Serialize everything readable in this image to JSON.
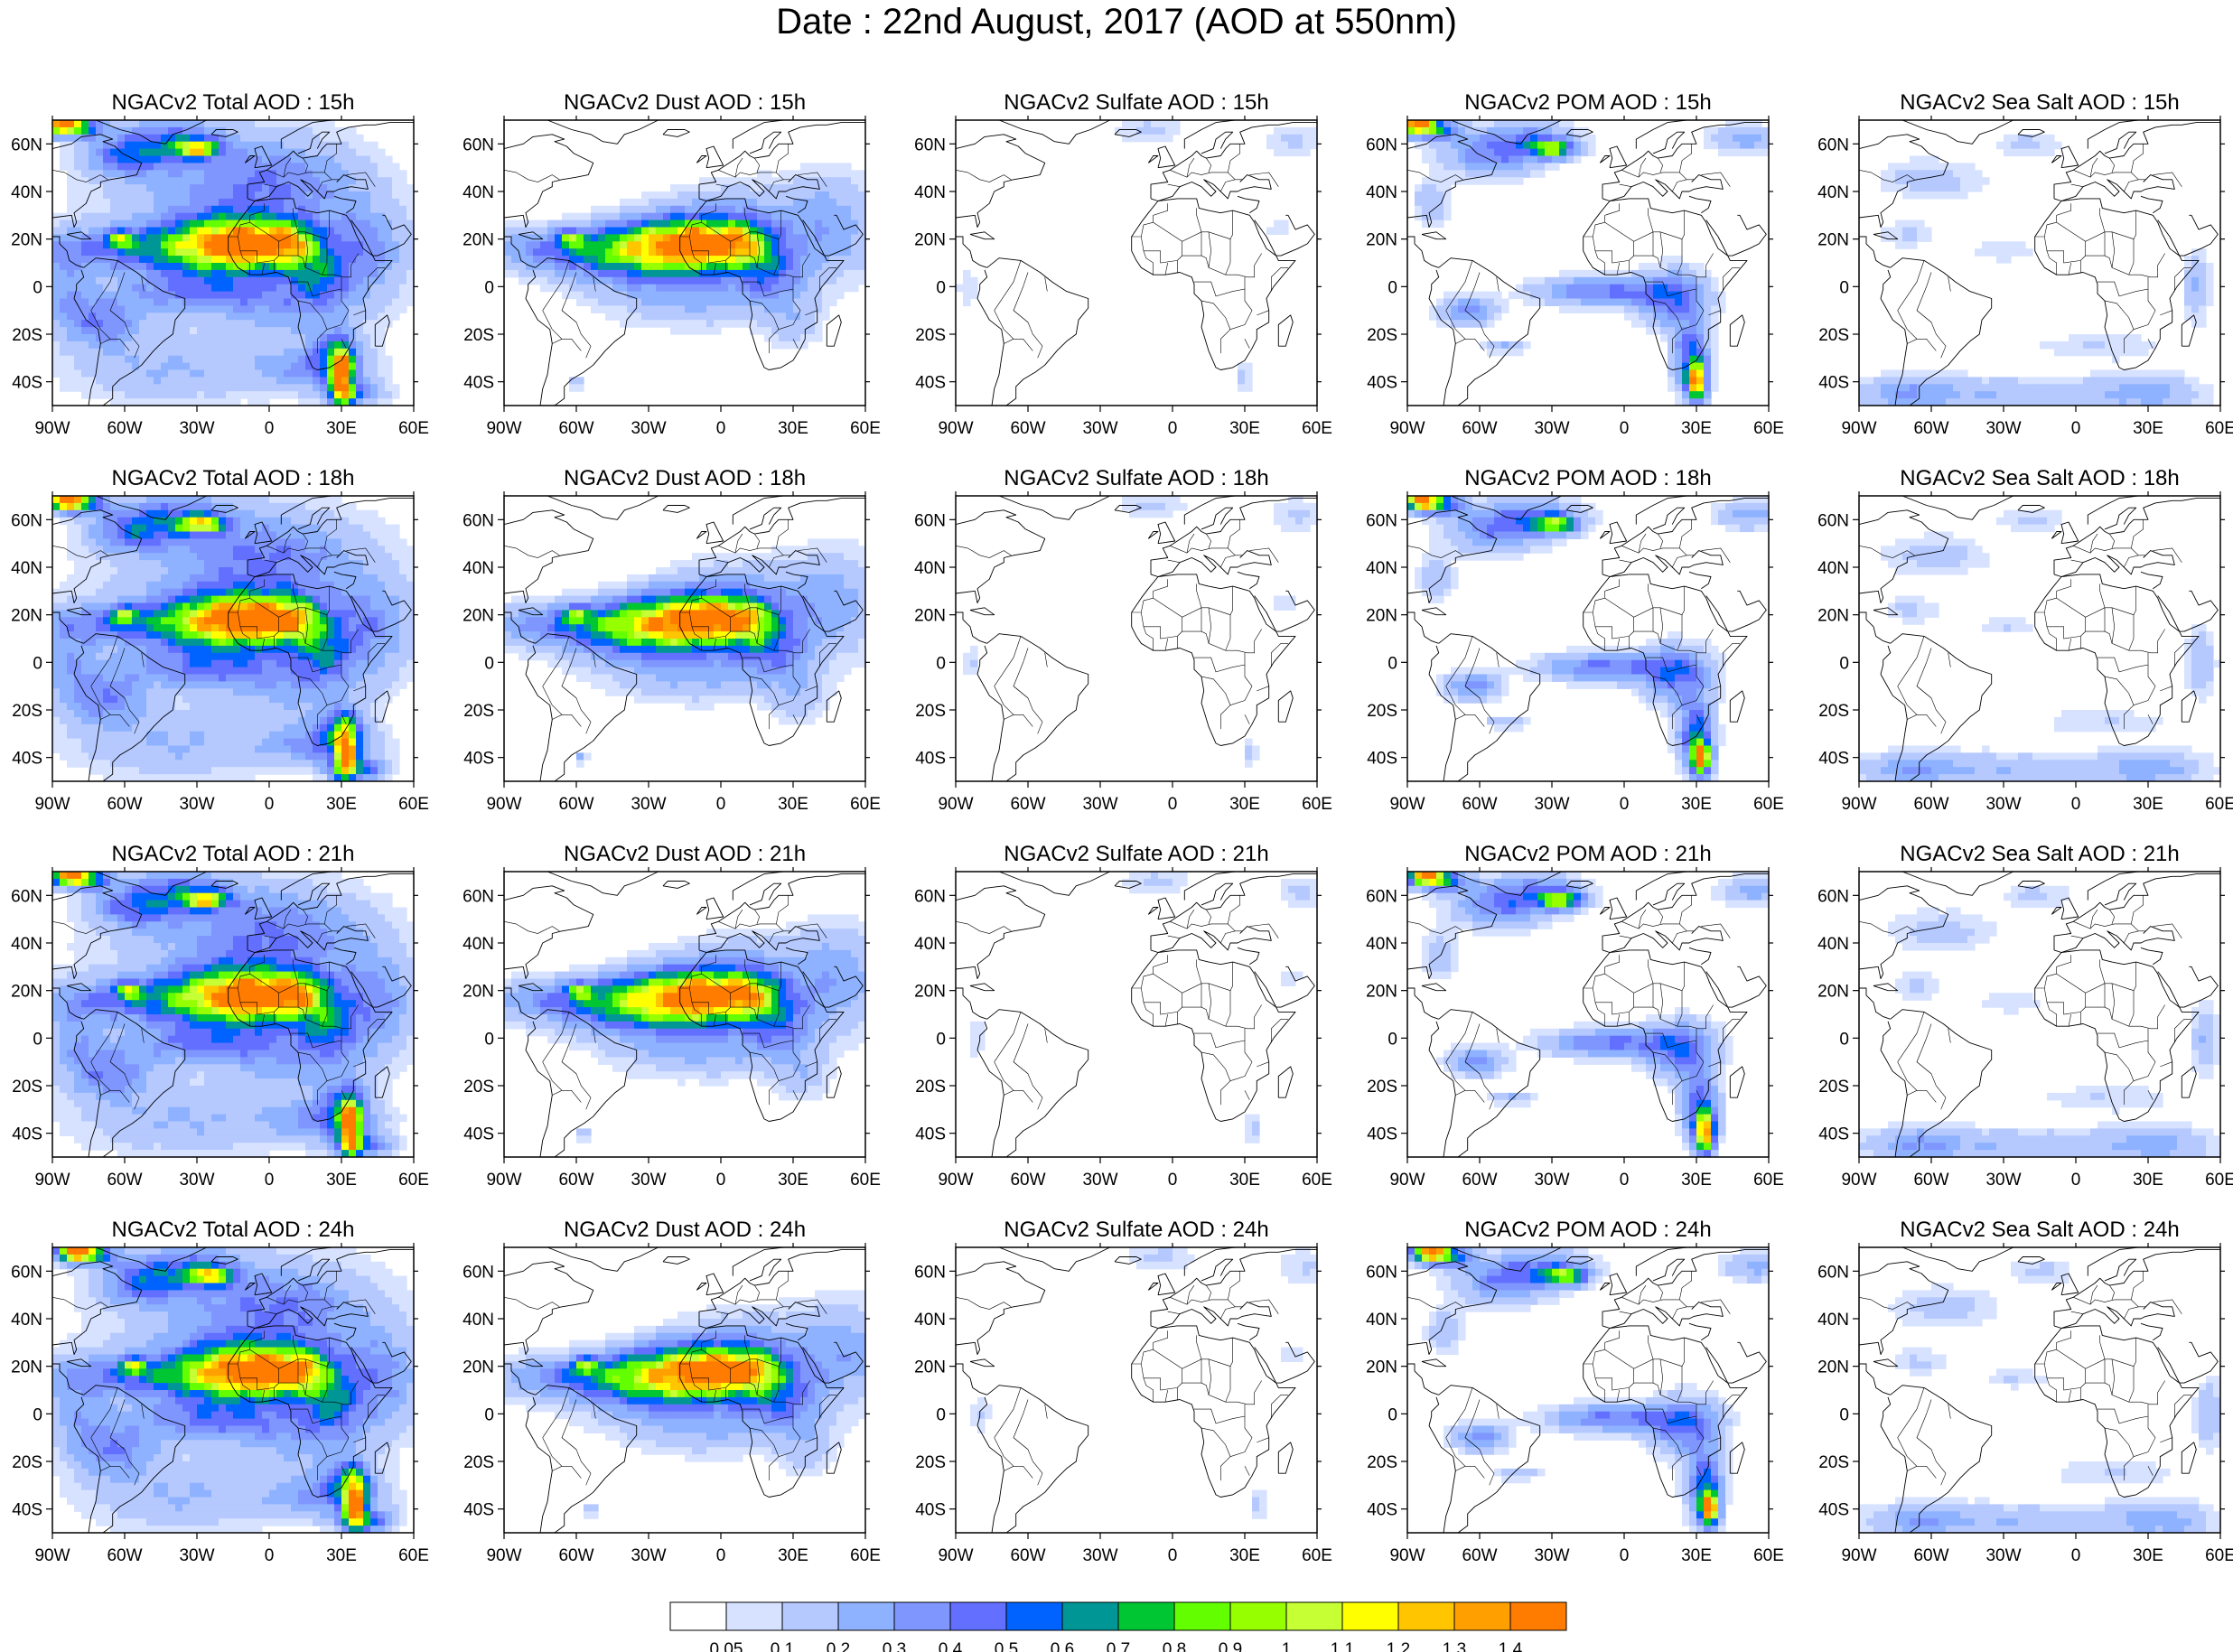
{
  "title": "Date : 22nd August, 2017 (AOD at 550nm)",
  "colors": {
    "levels": [
      "#ffffff",
      "#d6e2ff",
      "#b5c9ff",
      "#8eb2ff",
      "#7f96ff",
      "#6370ff",
      "#0063ff",
      "#009696",
      "#00c633",
      "#63ff00",
      "#96ff00",
      "#c6ff33",
      "#ffff00",
      "#ffc600",
      "#ffa000",
      "#ff7c00",
      "#ff1900"
    ],
    "coast": "#000000"
  },
  "colorbar": {
    "labels": [
      "0.05",
      "0.1",
      "0.2",
      "0.3",
      "0.4",
      "0.5",
      "0.6",
      "0.7",
      "0.8",
      "0.9",
      "1",
      "1.1",
      "1.2",
      "1.3",
      "1.4"
    ]
  },
  "axes": {
    "lon_labels": [
      "90W",
      "60W",
      "30W",
      "0",
      "30E",
      "60E"
    ],
    "lat_labels": [
      "60N",
      "40N",
      "20N",
      "0",
      "20S",
      "40S"
    ]
  },
  "maps": [
    {
      "title": "NGACv2 Total AOD : 15h",
      "species": "total",
      "hour": 15
    },
    {
      "title": "NGACv2 Dust AOD : 15h",
      "species": "dust",
      "hour": 15
    },
    {
      "title": "NGACv2 Sulfate AOD : 15h",
      "species": "sulfate",
      "hour": 15
    },
    {
      "title": "NGACv2 POM AOD : 15h",
      "species": "pom",
      "hour": 15
    },
    {
      "title": "NGACv2 Sea Salt AOD : 15h",
      "species": "seasalt",
      "hour": 15
    },
    {
      "title": "NGACv2 Total AOD : 18h",
      "species": "total",
      "hour": 18
    },
    {
      "title": "NGACv2 Dust AOD : 18h",
      "species": "dust",
      "hour": 18
    },
    {
      "title": "NGACv2 Sulfate AOD : 18h",
      "species": "sulfate",
      "hour": 18
    },
    {
      "title": "NGACv2 POM AOD : 18h",
      "species": "pom",
      "hour": 18
    },
    {
      "title": "NGACv2 Sea Salt AOD : 18h",
      "species": "seasalt",
      "hour": 18
    },
    {
      "title": "NGACv2 Total AOD : 21h",
      "species": "total",
      "hour": 21
    },
    {
      "title": "NGACv2 Dust AOD : 21h",
      "species": "dust",
      "hour": 21
    },
    {
      "title": "NGACv2 Sulfate AOD : 21h",
      "species": "sulfate",
      "hour": 21
    },
    {
      "title": "NGACv2 POM AOD : 21h",
      "species": "pom",
      "hour": 21
    },
    {
      "title": "NGACv2 Sea Salt AOD : 21h",
      "species": "seasalt",
      "hour": 21
    },
    {
      "title": "NGACv2 Total AOD : 24h",
      "species": "total",
      "hour": 24
    },
    {
      "title": "NGACv2 Dust AOD : 24h",
      "species": "dust",
      "hour": 24
    },
    {
      "title": "NGACv2 Sulfate AOD : 24h",
      "species": "sulfate",
      "hour": 24
    },
    {
      "title": "NGACv2 POM AOD : 24h",
      "species": "pom",
      "hour": 24
    },
    {
      "title": "NGACv2 Sea Salt  AOD : 24h",
      "species": "seasalt",
      "hour": 24
    }
  ]
}
